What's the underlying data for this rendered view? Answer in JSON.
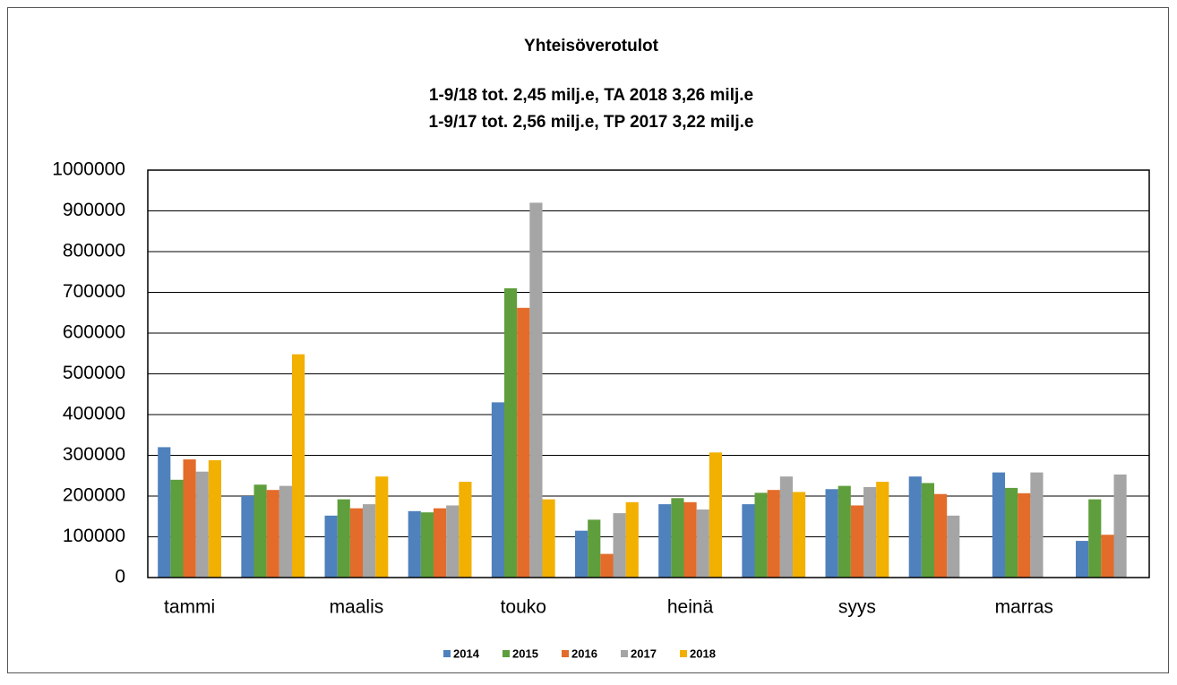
{
  "chart_data": {
    "type": "bar",
    "title": "Yhteisöverotulot",
    "subtitle": [
      "1-9/18 tot. 2,45 milj.e,  TA 2018  3,26 milj.e",
      "1-9/17 tot. 2,56 milj.e,  TP 2017  3,22 milj.e"
    ],
    "categories": [
      "tammi",
      null,
      "maalis",
      null,
      "touko",
      null,
      "heinä",
      null,
      "syys",
      null,
      "marras",
      null
    ],
    "series": [
      {
        "name": "2014",
        "color": "#4f81bd",
        "values": [
          320000,
          200000,
          152000,
          163000,
          430000,
          115000,
          180000,
          180000,
          217000,
          248000,
          258000,
          90000
        ]
      },
      {
        "name": "2015",
        "color": "#5f9e3c",
        "values": [
          240000,
          228000,
          192000,
          160000,
          710000,
          142000,
          195000,
          208000,
          225000,
          232000,
          220000,
          192000
        ]
      },
      {
        "name": "2016",
        "color": "#e36c2a",
        "values": [
          290000,
          215000,
          170000,
          170000,
          662000,
          58000,
          185000,
          215000,
          177000,
          205000,
          207000,
          105000
        ]
      },
      {
        "name": "2017",
        "color": "#a5a5a5",
        "values": [
          260000,
          225000,
          180000,
          177000,
          920000,
          158000,
          167000,
          248000,
          222000,
          152000,
          258000,
          253000
        ]
      },
      {
        "name": "2018",
        "color": "#f2b000",
        "values": [
          288000,
          548000,
          248000,
          235000,
          192000,
          185000,
          307000,
          210000,
          235000,
          null,
          null,
          null
        ]
      }
    ],
    "ylim": [
      0,
      1000000
    ],
    "yticks": [
      0,
      100000,
      200000,
      300000,
      400000,
      500000,
      600000,
      700000,
      800000,
      900000,
      1000000
    ],
    "grid": true,
    "legend": "bottom"
  }
}
